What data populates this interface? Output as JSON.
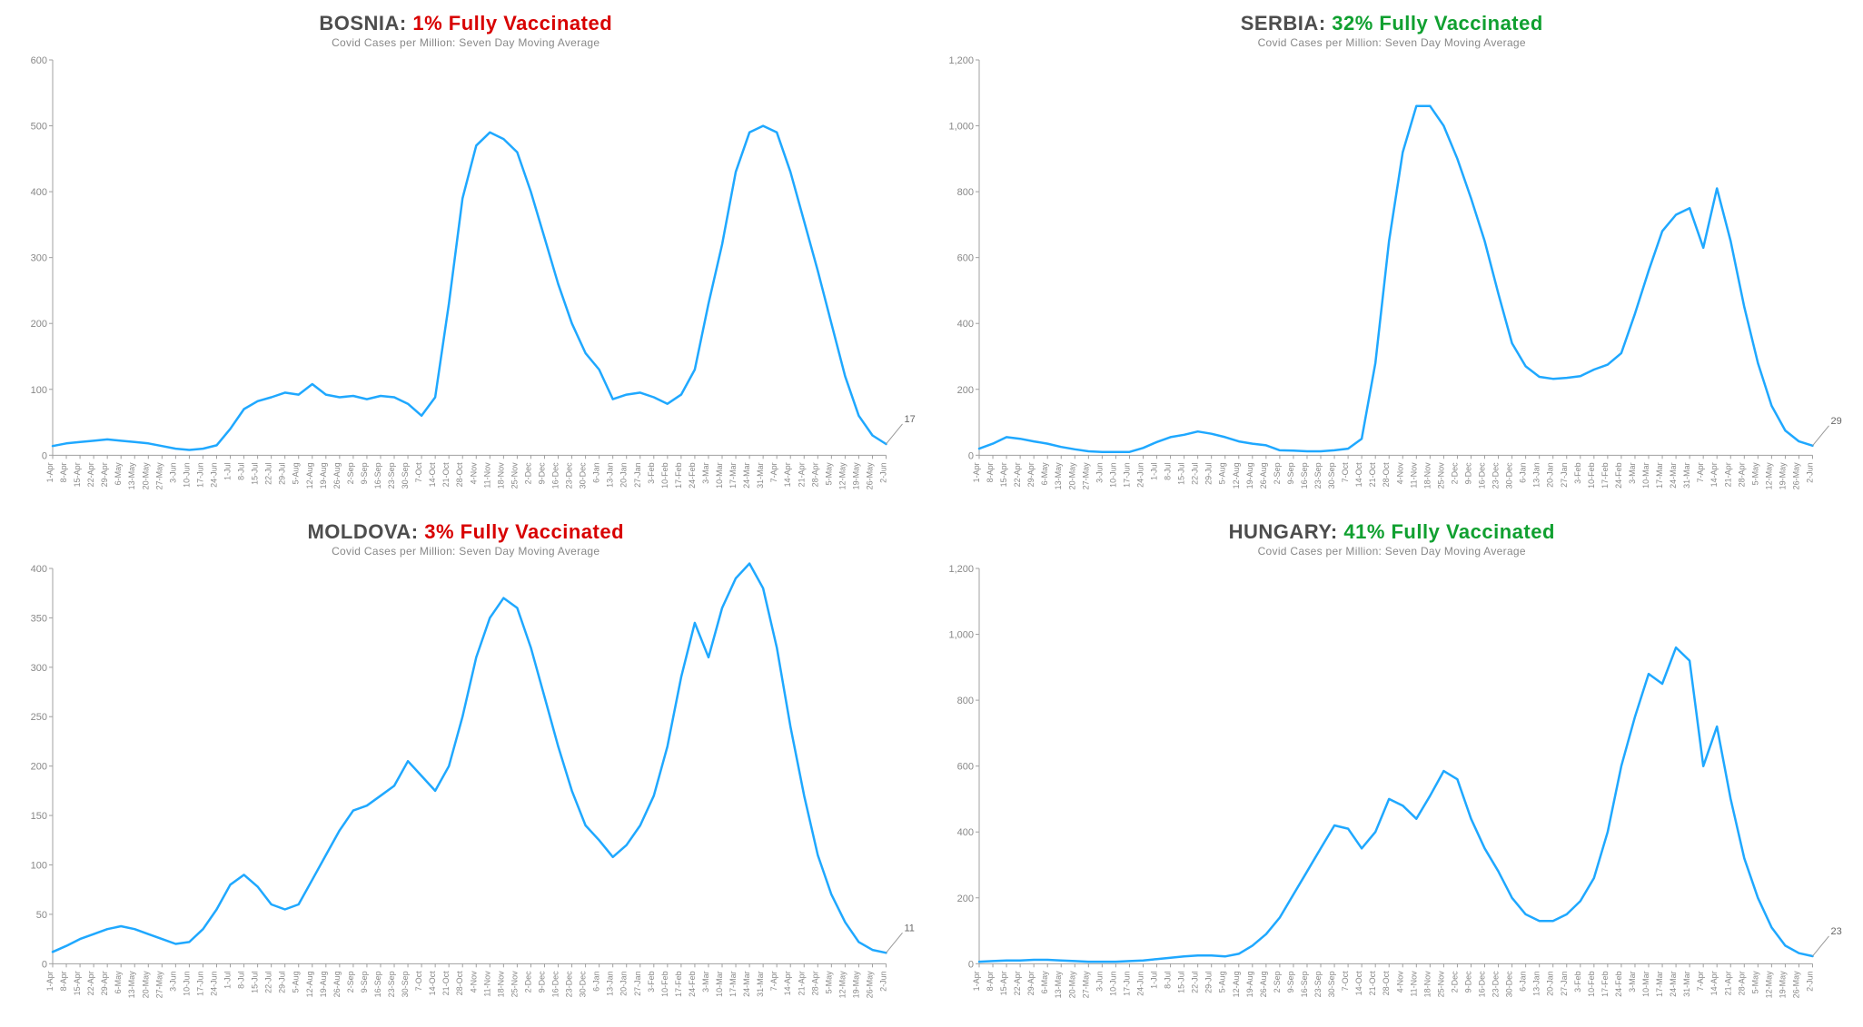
{
  "layout": {
    "rows": 2,
    "cols": 2
  },
  "global": {
    "subtitle": "Covid Cases per Million: Seven Day Moving Average",
    "line_color": "#1fa8ff",
    "axis_color": "#a0a0a0",
    "text_color": "#888888",
    "background": "#ffffff",
    "title_country_color": "#4d4d4d",
    "title_low_color": "#d80000",
    "title_high_color": "#10a030",
    "title_fontsize": 22,
    "subtitle_fontsize": 12,
    "line_width": 2.5,
    "x_categories": [
      "1-Apr",
      "8-Apr",
      "15-Apr",
      "22-Apr",
      "29-Apr",
      "6-May",
      "13-May",
      "20-May",
      "27-May",
      "3-Jun",
      "10-Jun",
      "17-Jun",
      "24-Jun",
      "1-Jul",
      "8-Jul",
      "15-Jul",
      "22-Jul",
      "29-Jul",
      "5-Aug",
      "12-Aug",
      "19-Aug",
      "26-Aug",
      "2-Sep",
      "9-Sep",
      "16-Sep",
      "23-Sep",
      "30-Sep",
      "7-Oct",
      "14-Oct",
      "21-Oct",
      "28-Oct",
      "4-Nov",
      "11-Nov",
      "18-Nov",
      "25-Nov",
      "2-Dec",
      "9-Dec",
      "16-Dec",
      "23-Dec",
      "30-Dec",
      "6-Jan",
      "13-Jan",
      "20-Jan",
      "27-Jan",
      "3-Feb",
      "10-Feb",
      "17-Feb",
      "24-Feb",
      "3-Mar",
      "10-Mar",
      "17-Mar",
      "24-Mar",
      "31-Mar",
      "7-Apr",
      "14-Apr",
      "21-Apr",
      "28-Apr",
      "5-May",
      "12-May",
      "19-May",
      "26-May",
      "2-Jun"
    ]
  },
  "panels": [
    {
      "id": "bosnia",
      "country": "BOSNIA",
      "stat_text": "1% Fully Vaccinated",
      "stat_class": "low",
      "ylim": [
        0,
        600
      ],
      "ytick_step": 100,
      "endpoint_value": 17,
      "values": [
        14,
        18,
        20,
        22,
        24,
        22,
        20,
        18,
        14,
        10,
        8,
        10,
        15,
        40,
        70,
        82,
        88,
        95,
        92,
        108,
        92,
        88,
        90,
        85,
        90,
        88,
        78,
        60,
        88,
        230,
        390,
        470,
        490,
        480,
        460,
        400,
        330,
        260,
        200,
        155,
        130,
        85,
        92,
        95,
        88,
        78,
        92,
        130,
        230,
        320,
        430,
        490,
        500,
        490,
        430,
        355,
        280,
        200,
        120,
        60,
        30,
        17
      ]
    },
    {
      "id": "serbia",
      "country": "SERBIA",
      "stat_text": "32% Fully Vaccinated",
      "stat_class": "high",
      "ylim": [
        0,
        1200
      ],
      "ytick_step": 200,
      "endpoint_value": 29,
      "values": [
        20,
        35,
        55,
        50,
        42,
        35,
        25,
        18,
        12,
        10,
        10,
        10,
        22,
        40,
        55,
        62,
        72,
        65,
        55,
        42,
        35,
        30,
        15,
        14,
        12,
        12,
        15,
        20,
        50,
        280,
        650,
        920,
        1060,
        1060,
        1000,
        900,
        780,
        650,
        490,
        340,
        270,
        238,
        232,
        235,
        240,
        260,
        275,
        310,
        430,
        560,
        680,
        730,
        750,
        630,
        810,
        650,
        450,
        280,
        150,
        75,
        42,
        29
      ]
    },
    {
      "id": "moldova",
      "country": "MOLDOVA",
      "stat_text": "3% Fully Vaccinated",
      "stat_class": "low",
      "ylim": [
        0,
        400
      ],
      "ytick_step": 50,
      "endpoint_value": 11,
      "values": [
        12,
        18,
        25,
        30,
        35,
        38,
        35,
        30,
        25,
        20,
        22,
        35,
        55,
        80,
        90,
        78,
        60,
        55,
        60,
        85,
        110,
        135,
        155,
        160,
        170,
        180,
        205,
        190,
        175,
        200,
        250,
        310,
        350,
        370,
        360,
        320,
        270,
        220,
        175,
        140,
        125,
        108,
        120,
        140,
        170,
        220,
        290,
        345,
        310,
        360,
        390,
        405,
        380,
        320,
        240,
        170,
        110,
        70,
        42,
        22,
        14,
        11
      ]
    },
    {
      "id": "hungary",
      "country": "HUNGARY",
      "stat_text": "41% Fully Vaccinated",
      "stat_class": "high",
      "ylim": [
        0,
        1200
      ],
      "ytick_step": 200,
      "endpoint_value": 23,
      "values": [
        6,
        8,
        10,
        10,
        12,
        12,
        10,
        8,
        6,
        6,
        6,
        8,
        10,
        14,
        18,
        22,
        25,
        25,
        22,
        30,
        55,
        90,
        140,
        210,
        280,
        350,
        420,
        410,
        350,
        400,
        500,
        480,
        440,
        510,
        585,
        560,
        440,
        350,
        280,
        200,
        150,
        130,
        130,
        150,
        190,
        260,
        400,
        600,
        750,
        880,
        850,
        960,
        920,
        600,
        720,
        500,
        320,
        200,
        110,
        55,
        32,
        23
      ]
    }
  ]
}
